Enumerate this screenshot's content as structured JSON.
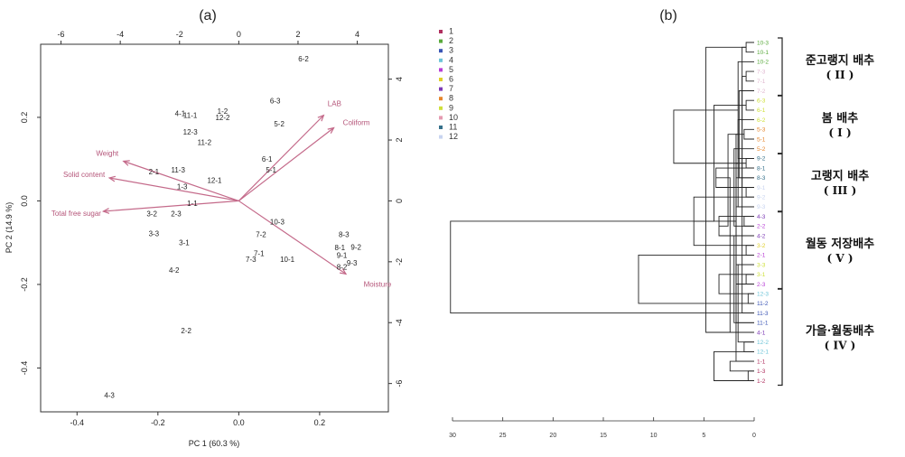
{
  "chart_data": [
    {
      "type": "scatter",
      "panel_label": "(a)",
      "subtype": "biplot",
      "xlabel": "PC 1 (60.3 %)",
      "ylabel": "PC 2 (14.9 %)",
      "xlim": [
        -0.49,
        0.37
      ],
      "ylim": [
        -0.505,
        0.375
      ],
      "x_ticks": [
        "-0.4",
        "-0.2",
        "0.0",
        "0.2"
      ],
      "y_ticks": [
        "-0.4",
        "-0.2",
        "0.0",
        "0.2"
      ],
      "top_ticks": [
        "-6",
        "-4",
        "-2",
        "0",
        "2",
        "4"
      ],
      "right_ticks": [
        "4",
        "2",
        "0",
        "-2",
        "-4",
        "-6"
      ],
      "points": [
        {
          "label": "6-2",
          "x": 0.16,
          "y": 0.34
        },
        {
          "label": "4-1",
          "x": -0.145,
          "y": 0.21
        },
        {
          "label": "11-1",
          "x": -0.12,
          "y": 0.205
        },
        {
          "label": "1-2",
          "x": -0.04,
          "y": 0.215
        },
        {
          "label": "12-2",
          "x": -0.04,
          "y": 0.2
        },
        {
          "label": "12-3",
          "x": -0.12,
          "y": 0.165
        },
        {
          "label": "11-2",
          "x": -0.085,
          "y": 0.14
        },
        {
          "label": "6-3",
          "x": 0.09,
          "y": 0.24
        },
        {
          "label": "5-2",
          "x": 0.1,
          "y": 0.185
        },
        {
          "label": "6-1",
          "x": 0.07,
          "y": 0.1
        },
        {
          "label": "5-1",
          "x": 0.08,
          "y": 0.075
        },
        {
          "label": "11-3",
          "x": -0.15,
          "y": 0.075
        },
        {
          "label": "2-1",
          "x": -0.21,
          "y": 0.07
        },
        {
          "label": "12-1",
          "x": -0.06,
          "y": 0.05
        },
        {
          "label": "1-3",
          "x": -0.14,
          "y": 0.035
        },
        {
          "label": "1-1",
          "x": -0.115,
          "y": -0.005
        },
        {
          "label": "3-2",
          "x": -0.215,
          "y": -0.03
        },
        {
          "label": "2-3",
          "x": -0.155,
          "y": -0.03
        },
        {
          "label": "3-3",
          "x": -0.21,
          "y": -0.078
        },
        {
          "label": "3-1",
          "x": -0.135,
          "y": -0.1
        },
        {
          "label": "4-2",
          "x": -0.16,
          "y": -0.165
        },
        {
          "label": "2-2",
          "x": -0.13,
          "y": -0.31
        },
        {
          "label": "4-3",
          "x": -0.32,
          "y": -0.465
        },
        {
          "label": "10-3",
          "x": 0.095,
          "y": -0.05
        },
        {
          "label": "7-2",
          "x": 0.055,
          "y": -0.08
        },
        {
          "label": "7-1",
          "x": 0.05,
          "y": -0.125
        },
        {
          "label": "7-3",
          "x": 0.03,
          "y": -0.14
        },
        {
          "label": "10-1",
          "x": 0.12,
          "y": -0.14
        },
        {
          "label": "8-3",
          "x": 0.26,
          "y": -0.08
        },
        {
          "label": "8-1",
          "x": 0.25,
          "y": -0.112
        },
        {
          "label": "9-2",
          "x": 0.29,
          "y": -0.11
        },
        {
          "label": "9-1",
          "x": 0.255,
          "y": -0.13
        },
        {
          "label": "9-3",
          "x": 0.28,
          "y": -0.148
        },
        {
          "label": "8-2",
          "x": 0.255,
          "y": -0.158
        }
      ],
      "vectors": [
        {
          "name": "LAB",
          "x": 0.21,
          "y": 0.205
        },
        {
          "name": "Coliform",
          "x": 0.235,
          "y": 0.175
        },
        {
          "name": "Weight",
          "x": -0.285,
          "y": 0.095
        },
        {
          "name": "Solid content",
          "x": -0.32,
          "y": 0.055
        },
        {
          "name": "Total free sugar",
          "x": -0.335,
          "y": -0.025
        },
        {
          "name": "Moisture",
          "x": 0.265,
          "y": -0.175
        }
      ]
    },
    {
      "type": "dendrogram",
      "panel_label": "(b)",
      "x_ticks": [
        "30",
        "25",
        "20",
        "15",
        "10",
        "5",
        "0"
      ],
      "xlim": [
        31,
        0
      ],
      "legend": [
        {
          "label": "1",
          "color": "#b03060"
        },
        {
          "label": "2",
          "color": "#5aaa3c"
        },
        {
          "label": "3",
          "color": "#3a55b5"
        },
        {
          "label": "4",
          "color": "#6cc4d8"
        },
        {
          "label": "5",
          "color": "#b83dd6"
        },
        {
          "label": "6",
          "color": "#e0cf2a"
        },
        {
          "label": "7",
          "color": "#7d3ab5"
        },
        {
          "label": "8",
          "color": "#e6862c"
        },
        {
          "label": "9",
          "color": "#cfe03a"
        },
        {
          "label": "10",
          "color": "#e59ab0"
        },
        {
          "label": "11",
          "color": "#35708a"
        },
        {
          "label": "12",
          "color": "#c8d4f0"
        }
      ],
      "leaves": [
        {
          "label": "10-3",
          "color": "#5aaa3c"
        },
        {
          "label": "10-1",
          "color": "#5aaa3c"
        },
        {
          "label": "10-2",
          "color": "#5aaa3c"
        },
        {
          "label": "7-3",
          "color": "#e0b8d0"
        },
        {
          "label": "7-1",
          "color": "#e0b8d0"
        },
        {
          "label": "7-2",
          "color": "#e0b8d0"
        },
        {
          "label": "6-3",
          "color": "#cfe03a"
        },
        {
          "label": "6-1",
          "color": "#cfe03a"
        },
        {
          "label": "6-2",
          "color": "#cfe03a"
        },
        {
          "label": "5-3",
          "color": "#e6862c"
        },
        {
          "label": "5-1",
          "color": "#e6862c"
        },
        {
          "label": "5-2",
          "color": "#e6862c"
        },
        {
          "label": "9-2",
          "color": "#35708a"
        },
        {
          "label": "8-1",
          "color": "#35708a"
        },
        {
          "label": "8-3",
          "color": "#35708a"
        },
        {
          "label": "9-1",
          "color": "#c8d4f0"
        },
        {
          "label": "9-2",
          "color": "#c8d4f0"
        },
        {
          "label": "9-3",
          "color": "#c8d4f0"
        },
        {
          "label": "4-3",
          "color": "#7d3ab5"
        },
        {
          "label": "2-2",
          "color": "#b83dd6"
        },
        {
          "label": "4-2",
          "color": "#7d3ab5"
        },
        {
          "label": "3-2",
          "color": "#e0cf2a"
        },
        {
          "label": "2-1",
          "color": "#b83dd6"
        },
        {
          "label": "3-3",
          "color": "#cfe03a"
        },
        {
          "label": "3-1",
          "color": "#cfe03a"
        },
        {
          "label": "2-3",
          "color": "#b83dd6"
        },
        {
          "label": "12-3",
          "color": "#6cc4d8"
        },
        {
          "label": "11-2",
          "color": "#3a55b5"
        },
        {
          "label": "11-3",
          "color": "#3a55b5"
        },
        {
          "label": "11-1",
          "color": "#3a55b5"
        },
        {
          "label": "4-1",
          "color": "#7d3ab5"
        },
        {
          "label": "12-2",
          "color": "#6cc4d8"
        },
        {
          "label": "12-1",
          "color": "#6cc4d8"
        },
        {
          "label": "1-1",
          "color": "#b03060"
        },
        {
          "label": "1-3",
          "color": "#b03060"
        },
        {
          "label": "1-2",
          "color": "#b03060"
        }
      ],
      "merges": [
        [
          0,
          1,
          0.8
        ],
        [
          12,
          2,
          1.6
        ],
        [
          3,
          4,
          0.8
        ],
        [
          14,
          5,
          1.5
        ],
        [
          13,
          15,
          3.8
        ],
        [
          6,
          7,
          0.8
        ],
        [
          17,
          8,
          1.6
        ],
        [
          9,
          10,
          1.0
        ],
        [
          19,
          11,
          2.0
        ],
        [
          18,
          20,
          3.5
        ],
        [
          16,
          21,
          6.0
        ],
        [
          12,
          13,
          0.8
        ],
        [
          23,
          14,
          1.8
        ],
        [
          15,
          16,
          0.8
        ],
        [
          25,
          17,
          1.8
        ],
        [
          24,
          26,
          3.5
        ],
        [
          22,
          27,
          11.5
        ],
        [
          18,
          19,
          1.0
        ],
        [
          29,
          20,
          2.0
        ],
        [
          21,
          22,
          0.8
        ],
        [
          31,
          23,
          1.6
        ],
        [
          24,
          25,
          0.8
        ],
        [
          33,
          34,
          2.4
        ],
        [
          32,
          35,
          4.0
        ],
        [
          30,
          36,
          4.8
        ],
        [
          26,
          27,
          0.6
        ],
        [
          38,
          28,
          1.2
        ],
        [
          39,
          29,
          1.8
        ],
        [
          40,
          30,
          2.4
        ],
        [
          31,
          32,
          1.0
        ],
        [
          42,
          33,
          1.8
        ],
        [
          34,
          35,
          0.6
        ],
        [
          44,
          36,
          1.2
        ],
        [
          43,
          45,
          2.6
        ],
        [
          41,
          46,
          4.0
        ],
        [
          37,
          47,
          8.0
        ],
        [
          28,
          48,
          30.2
        ]
      ],
      "groups": [
        {
          "name": "준고랭지 배추",
          "num": "( II )",
          "from": 0,
          "to": 6
        },
        {
          "name": "봄 배추",
          "num": "( I )",
          "from": 6,
          "to": 12
        },
        {
          "name": "고랭지 배추",
          "num": "( III )",
          "from": 12,
          "to": 18
        },
        {
          "name": "월동 저장배추",
          "num": "( V )",
          "from": 18,
          "to": 26
        },
        {
          "name": "가을·월동배추",
          "num": "( IV )",
          "from": 26,
          "to": 36
        }
      ]
    }
  ]
}
